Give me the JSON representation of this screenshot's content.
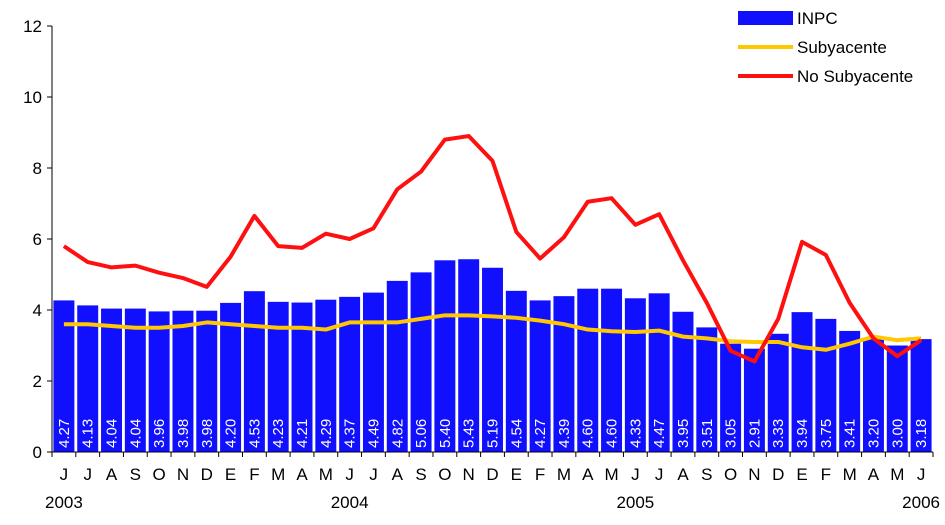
{
  "chart_data": {
    "type": "bar",
    "categories": [
      "J",
      "J",
      "A",
      "S",
      "O",
      "N",
      "D",
      "E",
      "F",
      "M",
      "A",
      "M",
      "J",
      "J",
      "A",
      "S",
      "O",
      "N",
      "D",
      "E",
      "F",
      "M",
      "A",
      "M",
      "J",
      "J",
      "A",
      "S",
      "O",
      "N",
      "D",
      "E",
      "F",
      "M",
      "A",
      "M",
      "J"
    ],
    "year_labels": [
      "2003",
      "2004",
      "2005",
      "2006"
    ],
    "ylim": [
      0,
      12
    ],
    "yticks": [
      0,
      2,
      4,
      6,
      8,
      10,
      12
    ],
    "grid": false,
    "legend": "top-right",
    "series": [
      {
        "name": "INPC",
        "type": "bar",
        "color": "#1010ff",
        "values": [
          4.27,
          4.13,
          4.04,
          4.04,
          3.96,
          3.98,
          3.98,
          4.2,
          4.53,
          4.23,
          4.21,
          4.29,
          4.37,
          4.49,
          4.82,
          5.06,
          5.4,
          5.43,
          5.19,
          4.54,
          4.27,
          4.39,
          4.6,
          4.6,
          4.33,
          4.47,
          3.95,
          3.51,
          3.05,
          2.91,
          3.33,
          3.94,
          3.75,
          3.41,
          3.2,
          3,
          3.18
        ],
        "value_labels": [
          "4.27",
          "4.13",
          "4.04",
          "4.04",
          "3.96",
          "3.98",
          "3.98",
          "4.20",
          "4.53",
          "4.23",
          "4.21",
          "4.29",
          "4.37",
          "4.49",
          "4.82",
          "5.06",
          "5.40",
          "5.43",
          "5.19",
          "4.54",
          "4.27",
          "4.39",
          "4.60",
          "4.60",
          "4.33",
          "4.47",
          "3.95",
          "3.51",
          "3.05",
          "2.91",
          "3.33",
          "3.94",
          "3.75",
          "3.41",
          "3.20",
          "3.00",
          "3.18"
        ]
      },
      {
        "name": "Subyacente",
        "type": "line",
        "color": "#ffc800",
        "values": [
          3.6,
          3.6,
          3.55,
          3.5,
          3.5,
          3.55,
          3.65,
          3.6,
          3.55,
          3.5,
          3.5,
          3.45,
          3.65,
          3.65,
          3.65,
          3.75,
          3.85,
          3.85,
          3.82,
          3.78,
          3.7,
          3.6,
          3.45,
          3.4,
          3.38,
          3.42,
          3.25,
          3.2,
          3.12,
          3.1,
          3.1,
          2.95,
          2.88,
          3.05,
          3.25,
          3.15,
          3.2
        ]
      },
      {
        "name": "No Subyacente",
        "type": "line",
        "color": "#ff1010",
        "values": [
          5.8,
          5.35,
          5.2,
          5.25,
          5.05,
          4.9,
          4.65,
          5.5,
          6.65,
          5.8,
          5.75,
          6.15,
          6.0,
          6.3,
          7.4,
          7.9,
          8.8,
          8.9,
          8.2,
          6.2,
          5.45,
          6.05,
          7.05,
          7.15,
          6.4,
          6.7,
          5.4,
          4.2,
          2.85,
          2.55,
          3.75,
          5.92,
          5.55,
          4.2,
          3.2,
          2.7,
          3.15
        ]
      }
    ]
  }
}
